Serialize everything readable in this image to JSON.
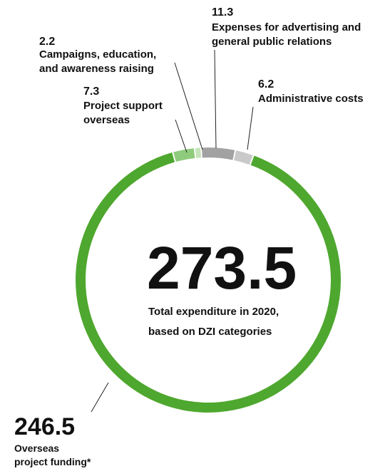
{
  "chart_data": {
    "type": "donut",
    "categories": [
      [
        "Overseas",
        "project funding*"
      ],
      [
        "Project support",
        "overseas"
      ],
      [
        "Campaigns, education,",
        "and awareness raising"
      ],
      [
        "Expenses for advertising and",
        "general public relations"
      ],
      [
        "Administrative costs"
      ]
    ],
    "values": [
      246.5,
      7.3,
      2.2,
      11.3,
      6.2
    ],
    "colors": [
      "#4ea72e",
      "#8fcb7c",
      "#c6e3b9",
      "#a2a2a2",
      "#c9c9c9"
    ],
    "total": 273.5,
    "center_label": [
      "Total expenditure in 2020,",
      "based on DZI categories"
    ]
  }
}
